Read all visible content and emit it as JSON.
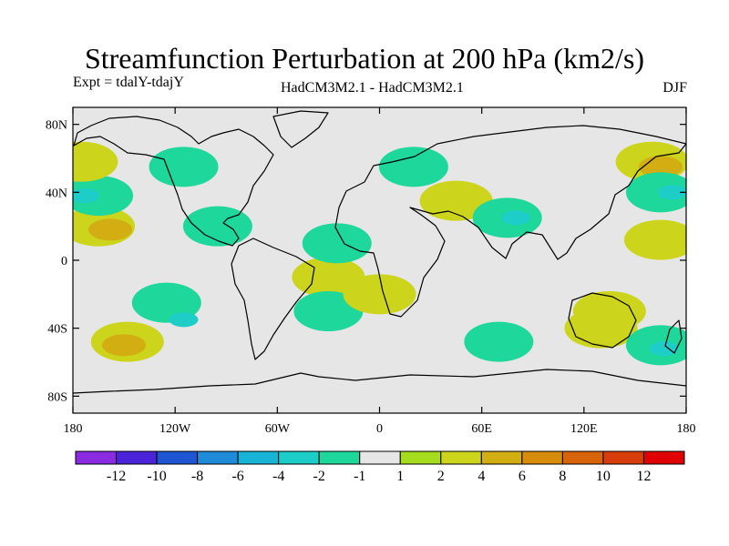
{
  "title": "Streamfunction Perturbation at 200 hPa (km2/s)",
  "experiment": "Expt = tdalY-tdajY",
  "model": "HadCM3M2.1 - HadCM3M2.1",
  "season": "DJF",
  "axes": {
    "y_ticks": [
      {
        "value": 80,
        "label": "80N"
      },
      {
        "value": 40,
        "label": "40N"
      },
      {
        "value": 0,
        "label": "0"
      },
      {
        "value": -40,
        "label": "40S"
      },
      {
        "value": -80,
        "label": "80S"
      }
    ],
    "x_ticks": [
      {
        "value": -180,
        "label": "180"
      },
      {
        "value": -120,
        "label": "120W"
      },
      {
        "value": -60,
        "label": "60W"
      },
      {
        "value": 0,
        "label": "0"
      },
      {
        "value": 60,
        "label": "60E"
      },
      {
        "value": 120,
        "label": "120E"
      },
      {
        "value": 180,
        "label": "180"
      }
    ]
  },
  "colorbar": {
    "colors": [
      "#8a2be2",
      "#4b23d8",
      "#1e55d2",
      "#1f8ad8",
      "#18b4d8",
      "#1ccdc8",
      "#1ed79a",
      "#e6e6e6",
      "#a6dc1e",
      "#ccd41c",
      "#d2ae12",
      "#d88c0c",
      "#d8640a",
      "#d83c0a",
      "#e00000"
    ],
    "labels": [
      "-12",
      "-10",
      "-8",
      "-6",
      "-4",
      "-2",
      "-1",
      "1",
      "2",
      "4",
      "6",
      "8",
      "10",
      "12"
    ]
  },
  "chart_data": {
    "type": "heatmap",
    "title": "Streamfunction Perturbation at 200 hPa (km2/s)",
    "projection": "cylindrical equidistant",
    "xlim": [
      -180,
      180
    ],
    "ylim": [
      -90,
      90
    ],
    "anomalies": [
      {
        "lon": -165,
        "lat": 20,
        "value": 2
      },
      {
        "lon": -158,
        "lat": 18,
        "value": 4
      },
      {
        "lon": -165,
        "lat": 38,
        "value": -2
      },
      {
        "lon": -173,
        "lat": 38,
        "value": -4
      },
      {
        "lon": -175,
        "lat": 58,
        "value": 2
      },
      {
        "lon": -115,
        "lat": 55,
        "value": -2
      },
      {
        "lon": -95,
        "lat": 20,
        "value": -2
      },
      {
        "lon": -125,
        "lat": -25,
        "value": -2
      },
      {
        "lon": -115,
        "lat": -35,
        "value": -4
      },
      {
        "lon": -148,
        "lat": -48,
        "value": 2
      },
      {
        "lon": -150,
        "lat": -50,
        "value": 4
      },
      {
        "lon": -30,
        "lat": -10,
        "value": 2
      },
      {
        "lon": -30,
        "lat": -30,
        "value": -2
      },
      {
        "lon": -25,
        "lat": 10,
        "value": -2
      },
      {
        "lon": 0,
        "lat": -20,
        "value": 2
      },
      {
        "lon": 20,
        "lat": 55,
        "value": -2
      },
      {
        "lon": 45,
        "lat": 35,
        "value": 2
      },
      {
        "lon": 75,
        "lat": 25,
        "value": -2
      },
      {
        "lon": 80,
        "lat": 25,
        "value": -4
      },
      {
        "lon": 70,
        "lat": -48,
        "value": -2
      },
      {
        "lon": 135,
        "lat": -30,
        "value": 2
      },
      {
        "lon": 130,
        "lat": -40,
        "value": 2
      },
      {
        "lon": 165,
        "lat": -50,
        "value": -2
      },
      {
        "lon": 167,
        "lat": -52,
        "value": -4
      },
      {
        "lon": 160,
        "lat": 58,
        "value": 2
      },
      {
        "lon": 165,
        "lat": 55,
        "value": 4
      },
      {
        "lon": 165,
        "lat": 40,
        "value": -2
      },
      {
        "lon": 172,
        "lat": 40,
        "value": -4
      },
      {
        "lon": 165,
        "lat": 12,
        "value": 2
      }
    ]
  }
}
